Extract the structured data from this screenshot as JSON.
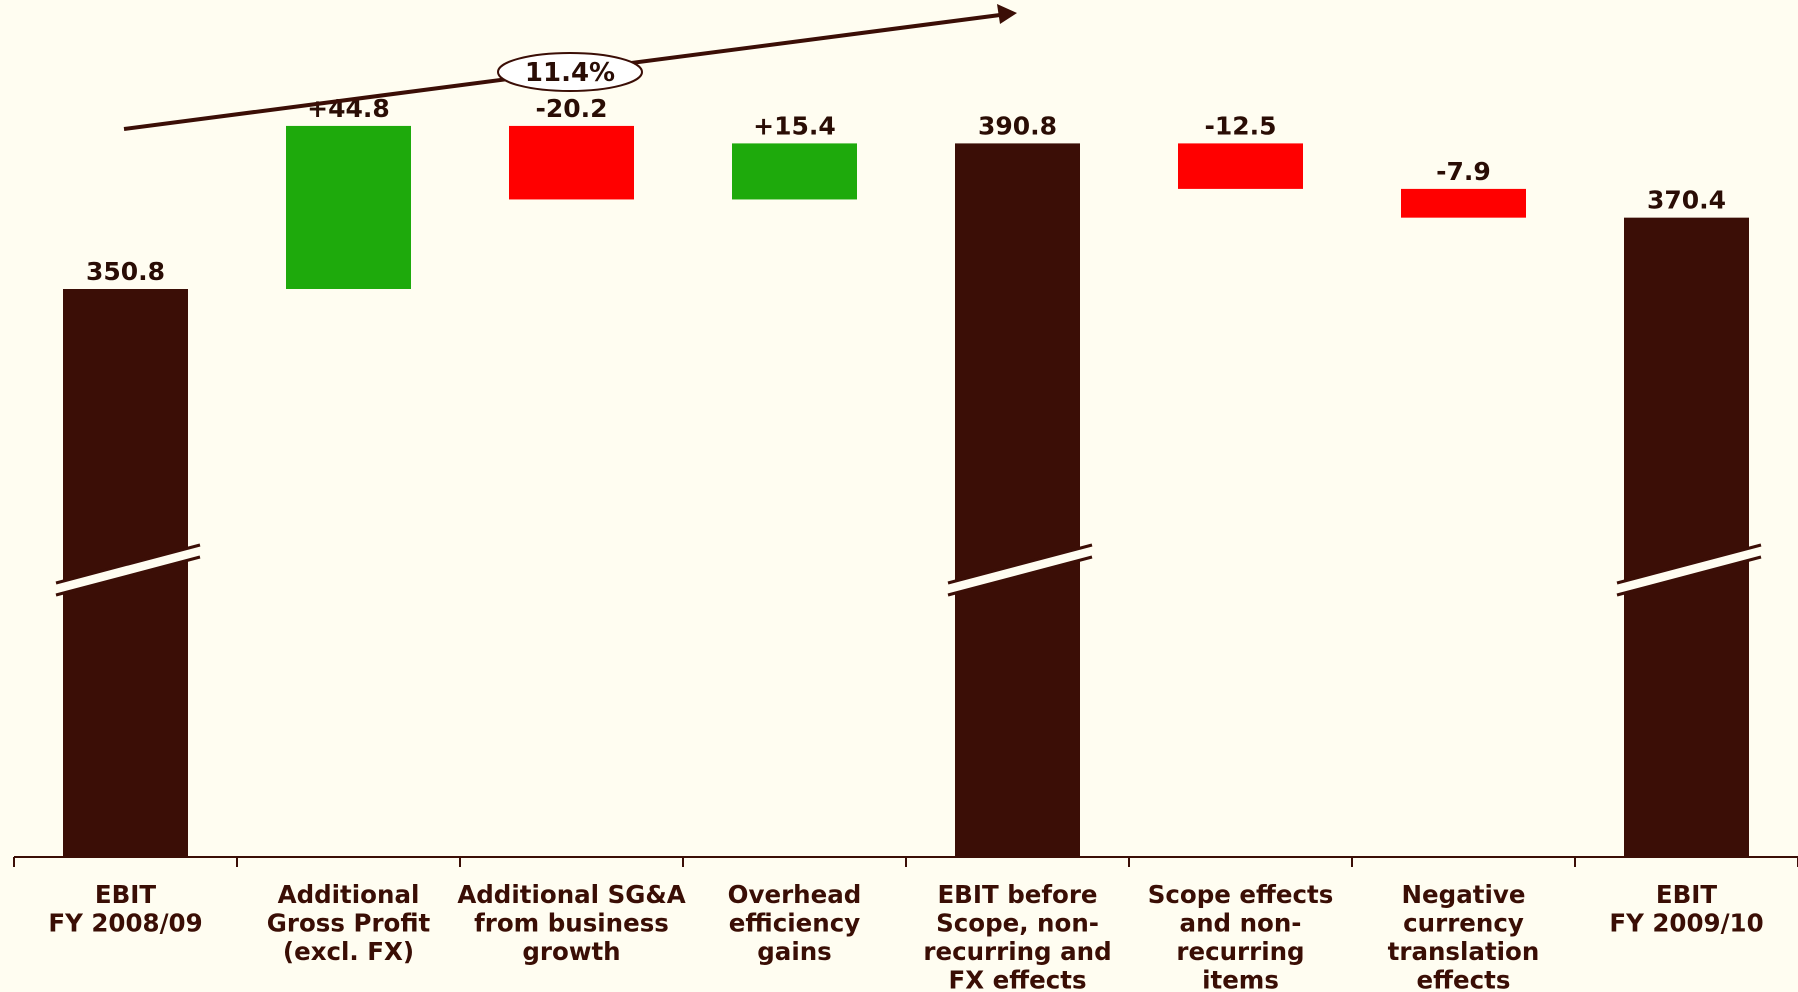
{
  "chart_data": {
    "type": "bar",
    "subtype": "waterfall",
    "broken_axis": true,
    "categories": [
      [
        "EBIT",
        "FY 2008/09"
      ],
      [
        "Additional",
        "Gross Profit",
        "(excl. FX)"
      ],
      [
        "Additional SG&A",
        "from business",
        "growth"
      ],
      [
        "Overhead",
        "efficiency",
        "gains"
      ],
      [
        "EBIT before",
        "Scope, non-",
        "recurring and",
        "FX effects"
      ],
      [
        "Scope effects",
        "and non-",
        "recurring",
        "items"
      ],
      [
        "Negative",
        "currency",
        "translation",
        "effects"
      ],
      [
        "EBIT",
        "FY 2009/10"
      ]
    ],
    "values": [
      350.8,
      44.8,
      -20.2,
      15.4,
      390.8,
      -12.5,
      -7.9,
      370.4
    ],
    "bar_kinds": [
      "total",
      "delta",
      "delta",
      "delta",
      "total",
      "delta",
      "delta",
      "total"
    ],
    "value_labels": [
      "350.8",
      "+44.8",
      "-20.2",
      "+15.4",
      "390.8",
      "-12.5",
      "-7.9",
      "370.4"
    ],
    "annotation": "11.4%",
    "colors": {
      "total": "#3b0e06",
      "increase": "#1eaa0c",
      "decrease": "#ff0000",
      "axis": "#3b0e06",
      "background": "#fffdf1"
    }
  }
}
